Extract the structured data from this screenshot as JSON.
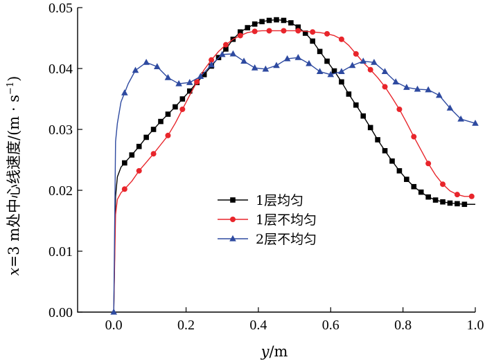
{
  "chart_data": {
    "type": "line",
    "title": "",
    "xlabel": {
      "var": "y",
      "unit": "/m"
    },
    "ylabel": {
      "prefix_var": "x",
      "text": "=3 m处中心线速度/(m · s",
      "sup": "−1",
      "suffix": ")"
    },
    "xlim": [
      -0.1,
      1.0
    ],
    "ylim": [
      0.0,
      0.05
    ],
    "x_ticks": [
      0.0,
      0.2,
      0.4,
      0.6,
      0.8,
      1.0
    ],
    "x_tick_labels": [
      "0.0",
      "0.2",
      "0.4",
      "0.6",
      "0.8",
      "1.0"
    ],
    "y_ticks": [
      0.0,
      0.01,
      0.02,
      0.03,
      0.04,
      0.05
    ],
    "y_tick_labels": [
      "0.00",
      "0.01",
      "0.02",
      "0.03",
      "0.04",
      "0.05"
    ],
    "grid": false,
    "legend_position": "center",
    "series": [
      {
        "name": "1层均匀",
        "color": "#000000",
        "marker": "square",
        "line": [
          [
            0,
            0
          ],
          [
            0.005,
            0.019
          ],
          [
            0.01,
            0.0222
          ],
          [
            0.02,
            0.0238
          ],
          [
            0.03,
            0.0245
          ],
          [
            0.05,
            0.0258
          ],
          [
            0.07,
            0.0272
          ],
          [
            0.09,
            0.0287
          ],
          [
            0.11,
            0.03
          ],
          [
            0.13,
            0.0313
          ],
          [
            0.15,
            0.0325
          ],
          [
            0.17,
            0.0337
          ],
          [
            0.19,
            0.035
          ],
          [
            0.21,
            0.0363
          ],
          [
            0.23,
            0.0377
          ],
          [
            0.25,
            0.039
          ],
          [
            0.27,
            0.0404
          ],
          [
            0.29,
            0.0418
          ],
          [
            0.31,
            0.0432
          ],
          [
            0.33,
            0.0448
          ],
          [
            0.35,
            0.046
          ],
          [
            0.37,
            0.0467
          ],
          [
            0.39,
            0.0473
          ],
          [
            0.41,
            0.0477
          ],
          [
            0.43,
            0.0479
          ],
          [
            0.45,
            0.048
          ],
          [
            0.47,
            0.0479
          ],
          [
            0.49,
            0.0475
          ],
          [
            0.51,
            0.0468
          ],
          [
            0.53,
            0.0458
          ],
          [
            0.55,
            0.0445
          ],
          [
            0.57,
            0.0428
          ],
          [
            0.59,
            0.0412
          ],
          [
            0.61,
            0.0396
          ],
          [
            0.63,
            0.0378
          ],
          [
            0.65,
            0.0358
          ],
          [
            0.67,
            0.034
          ],
          [
            0.69,
            0.0322
          ],
          [
            0.71,
            0.0303
          ],
          [
            0.73,
            0.0283
          ],
          [
            0.75,
            0.0265
          ],
          [
            0.77,
            0.0248
          ],
          [
            0.79,
            0.0232
          ],
          [
            0.81,
            0.0218
          ],
          [
            0.83,
            0.0206
          ],
          [
            0.85,
            0.0197
          ],
          [
            0.87,
            0.0189
          ],
          [
            0.89,
            0.0184
          ],
          [
            0.91,
            0.0181
          ],
          [
            0.93,
            0.0179
          ],
          [
            0.95,
            0.0178
          ],
          [
            0.97,
            0.0177
          ],
          [
            1.0,
            0.0177
          ]
        ],
        "markers_x": [
          0.03,
          0.05,
          0.07,
          0.09,
          0.11,
          0.13,
          0.15,
          0.17,
          0.19,
          0.21,
          0.23,
          0.25,
          0.27,
          0.29,
          0.31,
          0.33,
          0.35,
          0.37,
          0.39,
          0.41,
          0.43,
          0.45,
          0.47,
          0.49,
          0.51,
          0.53,
          0.55,
          0.57,
          0.59,
          0.61,
          0.63,
          0.65,
          0.67,
          0.69,
          0.71,
          0.73,
          0.75,
          0.77,
          0.79,
          0.81,
          0.83,
          0.85,
          0.87,
          0.89,
          0.91,
          0.93,
          0.95,
          0.97
        ]
      },
      {
        "name": "1层不均匀",
        "color": "#e8252b",
        "marker": "circle",
        "line": [
          [
            0,
            0
          ],
          [
            0.005,
            0.016
          ],
          [
            0.01,
            0.0185
          ],
          [
            0.02,
            0.0196
          ],
          [
            0.03,
            0.0202
          ],
          [
            0.05,
            0.0215
          ],
          [
            0.07,
            0.0232
          ],
          [
            0.09,
            0.0246
          ],
          [
            0.11,
            0.026
          ],
          [
            0.13,
            0.0275
          ],
          [
            0.15,
            0.029
          ],
          [
            0.17,
            0.031
          ],
          [
            0.19,
            0.0333
          ],
          [
            0.21,
            0.0356
          ],
          [
            0.23,
            0.0378
          ],
          [
            0.25,
            0.0398
          ],
          [
            0.27,
            0.0414
          ],
          [
            0.29,
            0.0428
          ],
          [
            0.31,
            0.0439
          ],
          [
            0.33,
            0.0448
          ],
          [
            0.35,
            0.0454
          ],
          [
            0.37,
            0.0459
          ],
          [
            0.39,
            0.0461
          ],
          [
            0.41,
            0.0462
          ],
          [
            0.43,
            0.0462
          ],
          [
            0.45,
            0.0462
          ],
          [
            0.47,
            0.0462
          ],
          [
            0.49,
            0.0462
          ],
          [
            0.51,
            0.0462
          ],
          [
            0.53,
            0.0461
          ],
          [
            0.55,
            0.046
          ],
          [
            0.57,
            0.0459
          ],
          [
            0.59,
            0.0457
          ],
          [
            0.61,
            0.0454
          ],
          [
            0.63,
            0.0448
          ],
          [
            0.65,
            0.0438
          ],
          [
            0.67,
            0.0424
          ],
          [
            0.69,
            0.041
          ],
          [
            0.71,
            0.0398
          ],
          [
            0.73,
            0.0385
          ],
          [
            0.75,
            0.037
          ],
          [
            0.77,
            0.0352
          ],
          [
            0.79,
            0.0333
          ],
          [
            0.81,
            0.0311
          ],
          [
            0.83,
            0.0288
          ],
          [
            0.85,
            0.0266
          ],
          [
            0.87,
            0.0244
          ],
          [
            0.89,
            0.0225
          ],
          [
            0.91,
            0.021
          ],
          [
            0.93,
            0.0199
          ],
          [
            0.95,
            0.0193
          ],
          [
            0.97,
            0.019
          ],
          [
            0.99,
            0.019
          ]
        ],
        "markers_x": [
          0.03,
          0.07,
          0.11,
          0.15,
          0.19,
          0.23,
          0.27,
          0.31,
          0.35,
          0.39,
          0.43,
          0.47,
          0.51,
          0.55,
          0.59,
          0.63,
          0.67,
          0.71,
          0.75,
          0.79,
          0.83,
          0.87,
          0.91,
          0.95,
          0.99
        ]
      },
      {
        "name": "2层不均匀",
        "color": "#2e4aa0",
        "marker": "triangle",
        "line": [
          [
            0,
            0
          ],
          [
            0.005,
            0.028
          ],
          [
            0.01,
            0.031
          ],
          [
            0.02,
            0.0345
          ],
          [
            0.04,
            0.0375
          ],
          [
            0.06,
            0.0397
          ],
          [
            0.09,
            0.041
          ],
          [
            0.12,
            0.0403
          ],
          [
            0.15,
            0.0385
          ],
          [
            0.18,
            0.0375
          ],
          [
            0.21,
            0.0377
          ],
          [
            0.24,
            0.0387
          ],
          [
            0.27,
            0.0406
          ],
          [
            0.3,
            0.0423
          ],
          [
            0.33,
            0.0424
          ],
          [
            0.36,
            0.0412
          ],
          [
            0.39,
            0.0401
          ],
          [
            0.42,
            0.0399
          ],
          [
            0.45,
            0.0405
          ],
          [
            0.48,
            0.0416
          ],
          [
            0.51,
            0.0418
          ],
          [
            0.54,
            0.0408
          ],
          [
            0.57,
            0.0395
          ],
          [
            0.6,
            0.039
          ],
          [
            0.63,
            0.0395
          ],
          [
            0.66,
            0.0405
          ],
          [
            0.69,
            0.0412
          ],
          [
            0.72,
            0.041
          ],
          [
            0.75,
            0.0395
          ],
          [
            0.78,
            0.0378
          ],
          [
            0.81,
            0.0369
          ],
          [
            0.84,
            0.0366
          ],
          [
            0.87,
            0.0365
          ],
          [
            0.9,
            0.0356
          ],
          [
            0.93,
            0.0335
          ],
          [
            0.96,
            0.0317
          ],
          [
            1.0,
            0.031
          ]
        ],
        "markers_x": [
          0,
          0.03,
          0.06,
          0.09,
          0.12,
          0.15,
          0.18,
          0.21,
          0.24,
          0.27,
          0.3,
          0.33,
          0.36,
          0.39,
          0.42,
          0.45,
          0.48,
          0.51,
          0.54,
          0.57,
          0.6,
          0.63,
          0.66,
          0.69,
          0.72,
          0.75,
          0.78,
          0.81,
          0.84,
          0.87,
          0.9,
          0.93,
          0.96,
          1.0
        ]
      }
    ]
  }
}
